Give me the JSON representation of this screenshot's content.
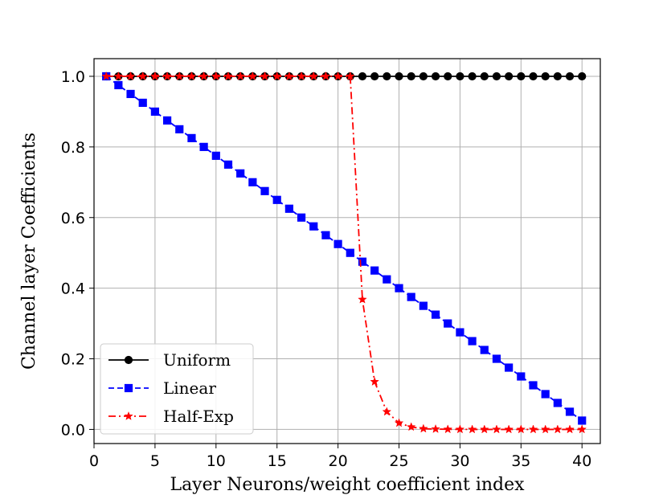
{
  "chart_data": {
    "type": "line",
    "title": "",
    "xlabel": "Layer Neurons/weight coefficient index",
    "ylabel": "Channel layer Coefficients",
    "xlim": [
      0,
      41.5
    ],
    "ylim": [
      -0.04,
      1.05
    ],
    "grid": true,
    "legend_placement": "bottom-left",
    "x_ticks": [
      0,
      5,
      10,
      15,
      20,
      25,
      30,
      35,
      40
    ],
    "x_tick_labels": [
      "0",
      "5",
      "10",
      "15",
      "20",
      "25",
      "30",
      "35",
      "40"
    ],
    "y_ticks": [
      0.0,
      0.2,
      0.4,
      0.6,
      0.8,
      1.0
    ],
    "y_tick_labels": [
      "0.0",
      "0.2",
      "0.4",
      "0.6",
      "0.8",
      "1.0"
    ],
    "x": [
      1,
      2,
      3,
      4,
      5,
      6,
      7,
      8,
      9,
      10,
      11,
      12,
      13,
      14,
      15,
      16,
      17,
      18,
      19,
      20,
      21,
      22,
      23,
      24,
      25,
      26,
      27,
      28,
      29,
      30,
      31,
      32,
      33,
      34,
      35,
      36,
      37,
      38,
      39,
      40
    ],
    "series": [
      {
        "name": "Uniform",
        "color": "#000000",
        "line_style": "solid",
        "marker": "circle",
        "values": [
          1,
          1,
          1,
          1,
          1,
          1,
          1,
          1,
          1,
          1,
          1,
          1,
          1,
          1,
          1,
          1,
          1,
          1,
          1,
          1,
          1,
          1,
          1,
          1,
          1,
          1,
          1,
          1,
          1,
          1,
          1,
          1,
          1,
          1,
          1,
          1,
          1,
          1,
          1,
          1
        ]
      },
      {
        "name": "Linear",
        "color": "#0000ff",
        "line_style": "dashed",
        "marker": "square",
        "values": [
          1.0,
          0.975,
          0.95,
          0.925,
          0.9,
          0.875,
          0.85,
          0.825,
          0.8,
          0.775,
          0.75,
          0.725,
          0.7,
          0.675,
          0.65,
          0.625,
          0.6,
          0.575,
          0.55,
          0.525,
          0.5,
          0.475,
          0.45,
          0.425,
          0.4,
          0.375,
          0.35,
          0.325,
          0.3,
          0.275,
          0.25,
          0.225,
          0.2,
          0.175,
          0.15,
          0.125,
          0.1,
          0.075,
          0.05,
          0.025
        ]
      },
      {
        "name": "Half-Exp",
        "color": "#ff0000",
        "line_style": "dashdot",
        "marker": "star",
        "values": [
          1,
          1,
          1,
          1,
          1,
          1,
          1,
          1,
          1,
          1,
          1,
          1,
          1,
          1,
          1,
          1,
          1,
          1,
          1,
          1,
          1,
          0.368,
          0.135,
          0.05,
          0.018,
          0.007,
          0.002,
          0.001,
          0.0003,
          0.0001,
          0,
          0,
          0,
          0,
          0,
          0,
          0,
          0,
          0,
          0
        ]
      }
    ]
  }
}
